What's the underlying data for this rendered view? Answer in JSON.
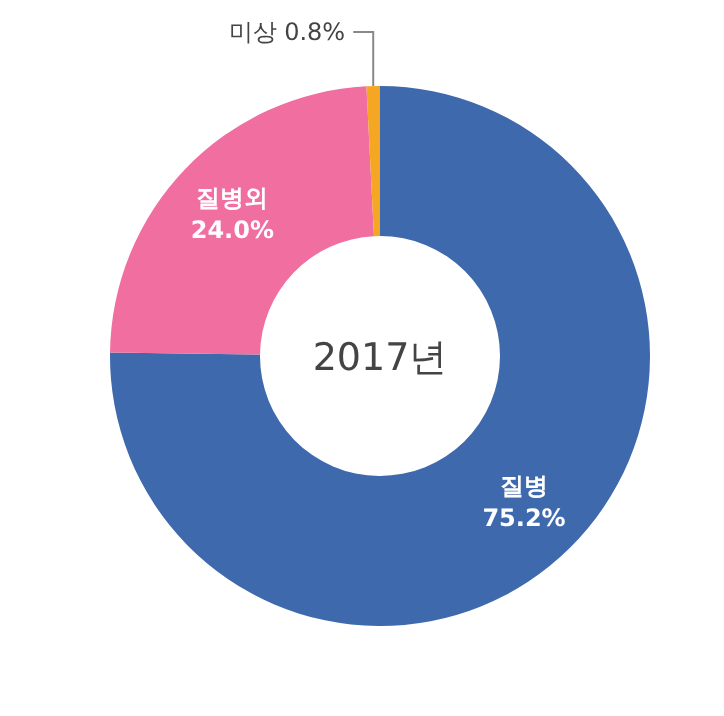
{
  "chart_data": {
    "type": "donut",
    "title": "2017년",
    "categories": [
      "질병",
      "질병외",
      "미상"
    ],
    "values": [
      75.2,
      24.0,
      0.8
    ],
    "value_labels": [
      "75.2%",
      "24.0%",
      "0.8%"
    ],
    "colors": [
      "#3f69ad",
      "#f06ea0",
      "#f5a623"
    ]
  }
}
